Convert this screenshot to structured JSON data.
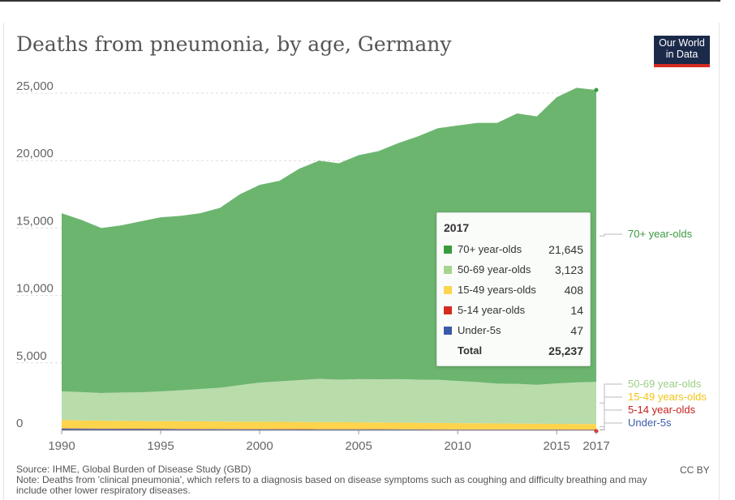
{
  "title": "Deaths from pneumonia, by age, Germany",
  "logo": {
    "line1": "Our World",
    "line2": "in Data"
  },
  "chart_data": {
    "type": "area",
    "stacked": true,
    "title": "Deaths from pneumonia, by age, Germany",
    "x": [
      1990,
      1991,
      1992,
      1993,
      1994,
      1995,
      1996,
      1997,
      1998,
      1999,
      2000,
      2001,
      2002,
      2003,
      2004,
      2005,
      2006,
      2007,
      2008,
      2009,
      2010,
      2011,
      2012,
      2013,
      2014,
      2015,
      2016,
      2017
    ],
    "xticks": [
      "1990",
      "1995",
      "2000",
      "2005",
      "2010",
      "2015",
      "2017"
    ],
    "yticks": [
      "0",
      "5,000",
      "10,000",
      "15,000",
      "20,000",
      "25,000"
    ],
    "ylim": [
      0,
      25000
    ],
    "series": [
      {
        "name": "Under-5s",
        "color": "#3b5aa8",
        "values": [
          120,
          110,
          105,
          100,
          95,
          90,
          85,
          82,
          80,
          78,
          75,
          72,
          70,
          68,
          66,
          64,
          62,
          60,
          58,
          56,
          55,
          53,
          52,
          51,
          50,
          49,
          48,
          47
        ]
      },
      {
        "name": "5-14 year-olds",
        "color": "#d42b21",
        "values": [
          25,
          24,
          23,
          22,
          22,
          21,
          21,
          20,
          20,
          19,
          19,
          19,
          18,
          18,
          18,
          17,
          17,
          17,
          16,
          16,
          16,
          15,
          15,
          15,
          15,
          14,
          14,
          14
        ]
      },
      {
        "name": "15-49 years-olds",
        "color": "#fdd44c",
        "values": [
          620,
          600,
          590,
          580,
          570,
          570,
          565,
          560,
          555,
          550,
          545,
          540,
          535,
          530,
          525,
          515,
          505,
          495,
          485,
          475,
          465,
          455,
          445,
          435,
          425,
          418,
          412,
          408
        ]
      },
      {
        "name": "50-69 year-olds",
        "color": "#b9dcab",
        "values": [
          2130,
          2100,
          2050,
          2100,
          2130,
          2200,
          2300,
          2400,
          2500,
          2700,
          2900,
          3000,
          3100,
          3200,
          3150,
          3200,
          3200,
          3220,
          3200,
          3200,
          3120,
          3050,
          2950,
          2950,
          2880,
          3000,
          3080,
          3123
        ]
      },
      {
        "name": "70+ year-olds",
        "color": "#6cb56f",
        "values": [
          13205,
          12766,
          12232,
          12398,
          12683,
          12919,
          12929,
          13038,
          13345,
          14153,
          14661,
          14869,
          15677,
          16184,
          16041,
          16604,
          16916,
          17508,
          18041,
          18653,
          18944,
          19227,
          19338,
          20049,
          19910,
          21219,
          21846,
          21645
        ]
      }
    ],
    "labels": [
      "70+ year-olds",
      "50-69 year-olds",
      "15-49 years-olds",
      "5-14 year-olds",
      "Under-5s"
    ],
    "label_colors": [
      "#3a9a3e",
      "#9ccf86",
      "#f2c418",
      "#c4211c",
      "#3b5aa8"
    ]
  },
  "tooltip": {
    "year": "2017",
    "rows": [
      {
        "label": "70+ year-olds",
        "value": "21,645",
        "color": "#3a9a3e"
      },
      {
        "label": "50-69 year-olds",
        "value": "3,123",
        "color": "#a6d38f"
      },
      {
        "label": "15-49 years-olds",
        "value": "408",
        "color": "#fdd44c"
      },
      {
        "label": "5-14 year-olds",
        "value": "14",
        "color": "#d42b21"
      },
      {
        "label": "Under-5s",
        "value": "47",
        "color": "#3b5aa8"
      }
    ],
    "total_label": "Total",
    "total_value": "25,237"
  },
  "source_line": "Source: IHME, Global Burden of Disease Study (GBD)",
  "note_line": "Note: Deaths from 'clinical pneumonia', which refers to a diagnosis based on disease symptoms such as coughing and difficulty breathing and may include other lower respiratory diseases.",
  "license": "CC BY"
}
